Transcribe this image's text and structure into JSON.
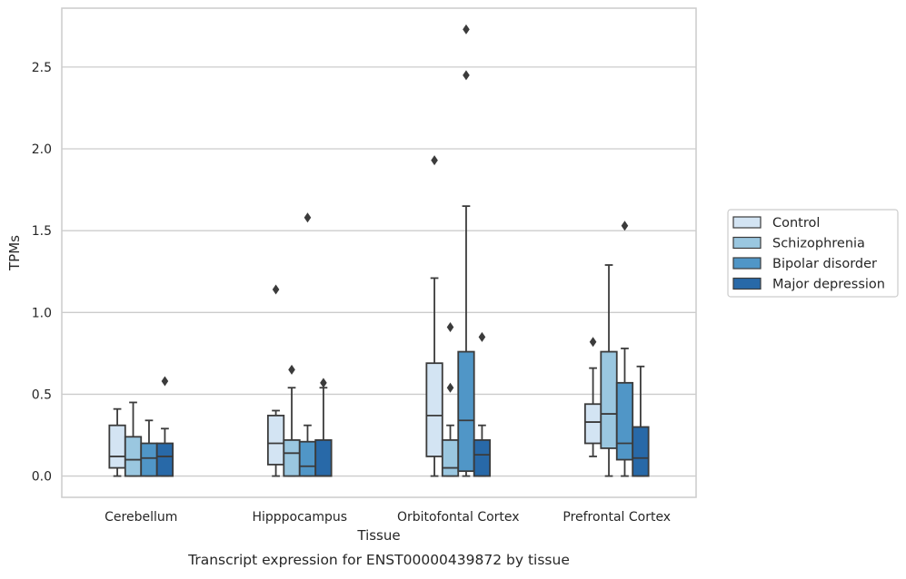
{
  "chart_data": {
    "type": "boxplot",
    "xlabel": "Tissue",
    "ylabel": "TPMs",
    "caption": "Transcript expression for ENST00000439872 by tissue",
    "ylim": [
      -0.13,
      2.86
    ],
    "yticks": [
      0.0,
      0.5,
      1.0,
      1.5,
      2.0,
      2.5
    ],
    "ytick_labels": [
      "0.0",
      "0.5",
      "1.0",
      "1.5",
      "2.0",
      "2.5"
    ],
    "grid": "horizontal",
    "legend_position": "right",
    "categories": [
      "Cerebellum",
      "Hipppocampus",
      "Orbitofontal Cortex",
      "Prefrontal Cortex"
    ],
    "series": [
      {
        "name": "Control",
        "color": "#d3e4f3",
        "boxes": [
          {
            "whislo": 0.0,
            "q1": 0.05,
            "med": 0.12,
            "q3": 0.31,
            "whishi": 0.41,
            "fliers": []
          },
          {
            "whislo": 0.0,
            "q1": 0.07,
            "med": 0.2,
            "q3": 0.37,
            "whishi": 0.4,
            "fliers": [
              1.14
            ]
          },
          {
            "whislo": 0.0,
            "q1": 0.12,
            "med": 0.37,
            "q3": 0.69,
            "whishi": 1.21,
            "fliers": [
              1.93
            ]
          },
          {
            "whislo": 0.12,
            "q1": 0.2,
            "med": 0.33,
            "q3": 0.44,
            "whishi": 0.66,
            "fliers": [
              0.82
            ]
          }
        ]
      },
      {
        "name": "Schizophrenia",
        "color": "#9ac7e0",
        "boxes": [
          {
            "whislo": 0.0,
            "q1": 0.0,
            "med": 0.1,
            "q3": 0.24,
            "whishi": 0.45,
            "fliers": []
          },
          {
            "whislo": 0.0,
            "q1": 0.0,
            "med": 0.14,
            "q3": 0.22,
            "whishi": 0.54,
            "fliers": [
              0.65
            ]
          },
          {
            "whislo": 0.0,
            "q1": 0.0,
            "med": 0.05,
            "q3": 0.22,
            "whishi": 0.31,
            "fliers": [
              0.54,
              0.91
            ]
          },
          {
            "whislo": 0.0,
            "q1": 0.17,
            "med": 0.38,
            "q3": 0.76,
            "whishi": 1.29,
            "fliers": []
          }
        ]
      },
      {
        "name": "Bipolar disorder",
        "color": "#5096c7",
        "boxes": [
          {
            "whislo": 0.0,
            "q1": 0.0,
            "med": 0.11,
            "q3": 0.2,
            "whishi": 0.34,
            "fliers": []
          },
          {
            "whislo": 0.0,
            "q1": 0.0,
            "med": 0.06,
            "q3": 0.21,
            "whishi": 0.31,
            "fliers": [
              1.58
            ]
          },
          {
            "whislo": 0.0,
            "q1": 0.03,
            "med": 0.34,
            "q3": 0.76,
            "whishi": 1.65,
            "fliers": [
              2.45,
              2.73
            ]
          },
          {
            "whislo": 0.0,
            "q1": 0.1,
            "med": 0.2,
            "q3": 0.57,
            "whishi": 0.78,
            "fliers": [
              1.53
            ]
          }
        ]
      },
      {
        "name": "Major depression",
        "color": "#2869a8",
        "boxes": [
          {
            "whislo": 0.0,
            "q1": 0.0,
            "med": 0.12,
            "q3": 0.2,
            "whishi": 0.29,
            "fliers": [
              0.58
            ]
          },
          {
            "whislo": 0.0,
            "q1": 0.0,
            "med": 0.0,
            "q3": 0.22,
            "whishi": 0.54,
            "fliers": [
              0.57
            ]
          },
          {
            "whislo": 0.0,
            "q1": 0.0,
            "med": 0.13,
            "q3": 0.22,
            "whishi": 0.31,
            "fliers": [
              0.85
            ]
          },
          {
            "whislo": 0.0,
            "q1": 0.0,
            "med": 0.11,
            "q3": 0.3,
            "whishi": 0.67,
            "fliers": []
          }
        ]
      }
    ]
  }
}
